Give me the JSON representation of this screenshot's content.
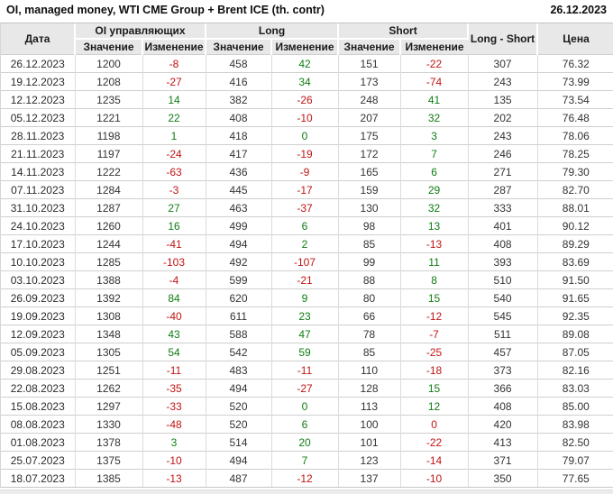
{
  "topbar": {
    "title": "OI, managed money, WTI CME Group + Brent ICE (th. contr)",
    "report_date": "26.12.2023"
  },
  "chart_data": {
    "type": "table",
    "title": "OI, managed money, WTI CME Group + Brent ICE (th. contr)",
    "report_date": "26.12.2023",
    "column_groups": [
      {
        "label": "Дата"
      },
      {
        "label": "OI управляющих"
      },
      {
        "label": "Long"
      },
      {
        "label": "Short"
      },
      {
        "label": "Long - Short"
      },
      {
        "label": "Цена"
      }
    ],
    "sub_headers": [
      "Значение",
      "Изменение",
      "Значение",
      "Изменение",
      "Значение",
      "Изменение"
    ],
    "colors": {
      "positive": "#0e7d12",
      "negative": "#c21414",
      "header_bg": "#e8e8e8",
      "body_text": "#333333"
    },
    "rows": [
      {
        "date": "26.12.2023",
        "oi": "1200",
        "oi_chg": "-8",
        "oi_chg_dir": "neg",
        "long": "458",
        "long_chg": "42",
        "long_chg_dir": "pos",
        "short": "151",
        "short_chg": "-22",
        "short_chg_dir": "neg",
        "long_short": "307",
        "price": "76.32"
      },
      {
        "date": "19.12.2023",
        "oi": "1208",
        "oi_chg": "-27",
        "oi_chg_dir": "neg",
        "long": "416",
        "long_chg": "34",
        "long_chg_dir": "pos",
        "short": "173",
        "short_chg": "-74",
        "short_chg_dir": "neg",
        "long_short": "243",
        "price": "73.99"
      },
      {
        "date": "12.12.2023",
        "oi": "1235",
        "oi_chg": "14",
        "oi_chg_dir": "pos",
        "long": "382",
        "long_chg": "-26",
        "long_chg_dir": "neg",
        "short": "248",
        "short_chg": "41",
        "short_chg_dir": "pos",
        "long_short": "135",
        "price": "73.54"
      },
      {
        "date": "05.12.2023",
        "oi": "1221",
        "oi_chg": "22",
        "oi_chg_dir": "pos",
        "long": "408",
        "long_chg": "-10",
        "long_chg_dir": "neg",
        "short": "207",
        "short_chg": "32",
        "short_chg_dir": "pos",
        "long_short": "202",
        "price": "76.48"
      },
      {
        "date": "28.11.2023",
        "oi": "1198",
        "oi_chg": "1",
        "oi_chg_dir": "pos",
        "long": "418",
        "long_chg": "0",
        "long_chg_dir": "pos",
        "short": "175",
        "short_chg": "3",
        "short_chg_dir": "pos",
        "long_short": "243",
        "price": "78.06"
      },
      {
        "date": "21.11.2023",
        "oi": "1197",
        "oi_chg": "-24",
        "oi_chg_dir": "neg",
        "long": "417",
        "long_chg": "-19",
        "long_chg_dir": "neg",
        "short": "172",
        "short_chg": "7",
        "short_chg_dir": "pos",
        "long_short": "246",
        "price": "78.25"
      },
      {
        "date": "14.11.2023",
        "oi": "1222",
        "oi_chg": "-63",
        "oi_chg_dir": "neg",
        "long": "436",
        "long_chg": "-9",
        "long_chg_dir": "neg",
        "short": "165",
        "short_chg": "6",
        "short_chg_dir": "pos",
        "long_short": "271",
        "price": "79.30"
      },
      {
        "date": "07.11.2023",
        "oi": "1284",
        "oi_chg": "-3",
        "oi_chg_dir": "neg",
        "long": "445",
        "long_chg": "-17",
        "long_chg_dir": "neg",
        "short": "159",
        "short_chg": "29",
        "short_chg_dir": "pos",
        "long_short": "287",
        "price": "82.70"
      },
      {
        "date": "31.10.2023",
        "oi": "1287",
        "oi_chg": "27",
        "oi_chg_dir": "pos",
        "long": "463",
        "long_chg": "-37",
        "long_chg_dir": "neg",
        "short": "130",
        "short_chg": "32",
        "short_chg_dir": "pos",
        "long_short": "333",
        "price": "88.01"
      },
      {
        "date": "24.10.2023",
        "oi": "1260",
        "oi_chg": "16",
        "oi_chg_dir": "pos",
        "long": "499",
        "long_chg": "6",
        "long_chg_dir": "pos",
        "short": "98",
        "short_chg": "13",
        "short_chg_dir": "pos",
        "long_short": "401",
        "price": "90.12"
      },
      {
        "date": "17.10.2023",
        "oi": "1244",
        "oi_chg": "-41",
        "oi_chg_dir": "neg",
        "long": "494",
        "long_chg": "2",
        "long_chg_dir": "pos",
        "short": "85",
        "short_chg": "-13",
        "short_chg_dir": "neg",
        "long_short": "408",
        "price": "89.29"
      },
      {
        "date": "10.10.2023",
        "oi": "1285",
        "oi_chg": "-103",
        "oi_chg_dir": "neg",
        "long": "492",
        "long_chg": "-107",
        "long_chg_dir": "neg",
        "short": "99",
        "short_chg": "11",
        "short_chg_dir": "pos",
        "long_short": "393",
        "price": "83.69"
      },
      {
        "date": "03.10.2023",
        "oi": "1388",
        "oi_chg": "-4",
        "oi_chg_dir": "neg",
        "long": "599",
        "long_chg": "-21",
        "long_chg_dir": "neg",
        "short": "88",
        "short_chg": "8",
        "short_chg_dir": "pos",
        "long_short": "510",
        "price": "91.50"
      },
      {
        "date": "26.09.2023",
        "oi": "1392",
        "oi_chg": "84",
        "oi_chg_dir": "pos",
        "long": "620",
        "long_chg": "9",
        "long_chg_dir": "pos",
        "short": "80",
        "short_chg": "15",
        "short_chg_dir": "pos",
        "long_short": "540",
        "price": "91.65"
      },
      {
        "date": "19.09.2023",
        "oi": "1308",
        "oi_chg": "-40",
        "oi_chg_dir": "neg",
        "long": "611",
        "long_chg": "23",
        "long_chg_dir": "pos",
        "short": "66",
        "short_chg": "-12",
        "short_chg_dir": "neg",
        "long_short": "545",
        "price": "92.35"
      },
      {
        "date": "12.09.2023",
        "oi": "1348",
        "oi_chg": "43",
        "oi_chg_dir": "pos",
        "long": "588",
        "long_chg": "47",
        "long_chg_dir": "pos",
        "short": "78",
        "short_chg": "-7",
        "short_chg_dir": "neg",
        "long_short": "511",
        "price": "89.08"
      },
      {
        "date": "05.09.2023",
        "oi": "1305",
        "oi_chg": "54",
        "oi_chg_dir": "pos",
        "long": "542",
        "long_chg": "59",
        "long_chg_dir": "pos",
        "short": "85",
        "short_chg": "-25",
        "short_chg_dir": "neg",
        "long_short": "457",
        "price": "87.05"
      },
      {
        "date": "29.08.2023",
        "oi": "1251",
        "oi_chg": "-11",
        "oi_chg_dir": "neg",
        "long": "483",
        "long_chg": "-11",
        "long_chg_dir": "neg",
        "short": "110",
        "short_chg": "-18",
        "short_chg_dir": "neg",
        "long_short": "373",
        "price": "82.16"
      },
      {
        "date": "22.08.2023",
        "oi": "1262",
        "oi_chg": "-35",
        "oi_chg_dir": "neg",
        "long": "494",
        "long_chg": "-27",
        "long_chg_dir": "neg",
        "short": "128",
        "short_chg": "15",
        "short_chg_dir": "pos",
        "long_short": "366",
        "price": "83.03"
      },
      {
        "date": "15.08.2023",
        "oi": "1297",
        "oi_chg": "-33",
        "oi_chg_dir": "neg",
        "long": "520",
        "long_chg": "0",
        "long_chg_dir": "pos",
        "short": "113",
        "short_chg": "12",
        "short_chg_dir": "pos",
        "long_short": "408",
        "price": "85.00"
      },
      {
        "date": "08.08.2023",
        "oi": "1330",
        "oi_chg": "-48",
        "oi_chg_dir": "neg",
        "long": "520",
        "long_chg": "6",
        "long_chg_dir": "pos",
        "short": "100",
        "short_chg": "0",
        "short_chg_dir": "neg",
        "long_short": "420",
        "price": "83.98"
      },
      {
        "date": "01.08.2023",
        "oi": "1378",
        "oi_chg": "3",
        "oi_chg_dir": "pos",
        "long": "514",
        "long_chg": "20",
        "long_chg_dir": "pos",
        "short": "101",
        "short_chg": "-22",
        "short_chg_dir": "neg",
        "long_short": "413",
        "price": "82.50"
      },
      {
        "date": "25.07.2023",
        "oi": "1375",
        "oi_chg": "-10",
        "oi_chg_dir": "neg",
        "long": "494",
        "long_chg": "7",
        "long_chg_dir": "pos",
        "short": "123",
        "short_chg": "-14",
        "short_chg_dir": "neg",
        "long_short": "371",
        "price": "79.07"
      },
      {
        "date": "18.07.2023",
        "oi": "1385",
        "oi_chg": "-13",
        "oi_chg_dir": "neg",
        "long": "487",
        "long_chg": "-12",
        "long_chg_dir": "neg",
        "short": "137",
        "short_chg": "-10",
        "short_chg_dir": "neg",
        "long_short": "350",
        "price": "77.65"
      }
    ]
  }
}
